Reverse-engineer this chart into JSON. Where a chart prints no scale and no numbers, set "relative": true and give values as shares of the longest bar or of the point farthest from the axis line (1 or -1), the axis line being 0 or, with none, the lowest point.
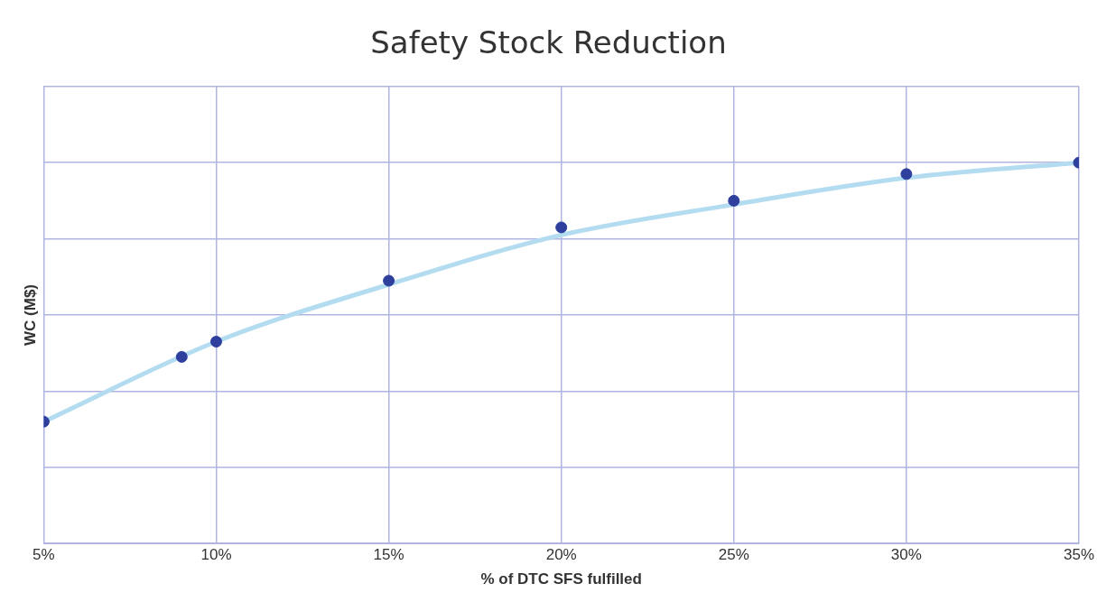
{
  "chart_data": {
    "type": "scatter",
    "title": "Safety Stock Reduction",
    "xlabel": "% of DTC SFS fulfilled",
    "ylabel": "WC (M$)",
    "relative": true,
    "xlim": [
      5,
      35
    ],
    "xticks": [
      {
        "value": 5,
        "label": "5%"
      },
      {
        "value": 10,
        "label": "10%"
      },
      {
        "value": 15,
        "label": "15%"
      },
      {
        "value": 20,
        "label": "20%"
      },
      {
        "value": 25,
        "label": "25%"
      },
      {
        "value": 30,
        "label": "30%"
      },
      {
        "value": 35,
        "label": "35%"
      }
    ],
    "grid": true,
    "legend": false,
    "marker": "circle",
    "series": [
      {
        "type": "line",
        "color": "#b4dcf0",
        "x": [
          5,
          10,
          15,
          20,
          25,
          30,
          35
        ],
        "values": [
          0.32,
          0.53,
          0.68,
          0.81,
          0.89,
          0.96,
          1.0
        ],
        "marker": "none"
      },
      {
        "type": "scatter",
        "color": "#2e3f9e",
        "x": [
          5,
          9,
          10,
          15,
          20,
          25,
          30,
          35
        ],
        "values": [
          0.32,
          0.49,
          0.53,
          0.69,
          0.83,
          0.9,
          0.97,
          1.0
        ]
      }
    ]
  }
}
